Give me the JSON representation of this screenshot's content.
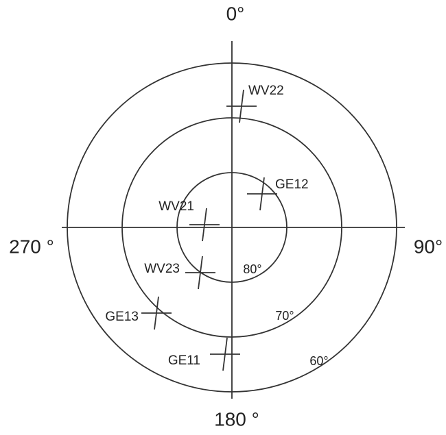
{
  "axis_labels": {
    "top": "0°",
    "right": "90°",
    "bottom": "180 °",
    "left": "270 °"
  },
  "ring_labels": [
    "80°",
    "70°",
    "60°"
  ],
  "satellites": [
    {
      "label": "WV22"
    },
    {
      "label": "GE12"
    },
    {
      "label": "WV21"
    },
    {
      "label": "WV23"
    },
    {
      "label": "GE13"
    },
    {
      "label": "GE11"
    }
  ]
}
